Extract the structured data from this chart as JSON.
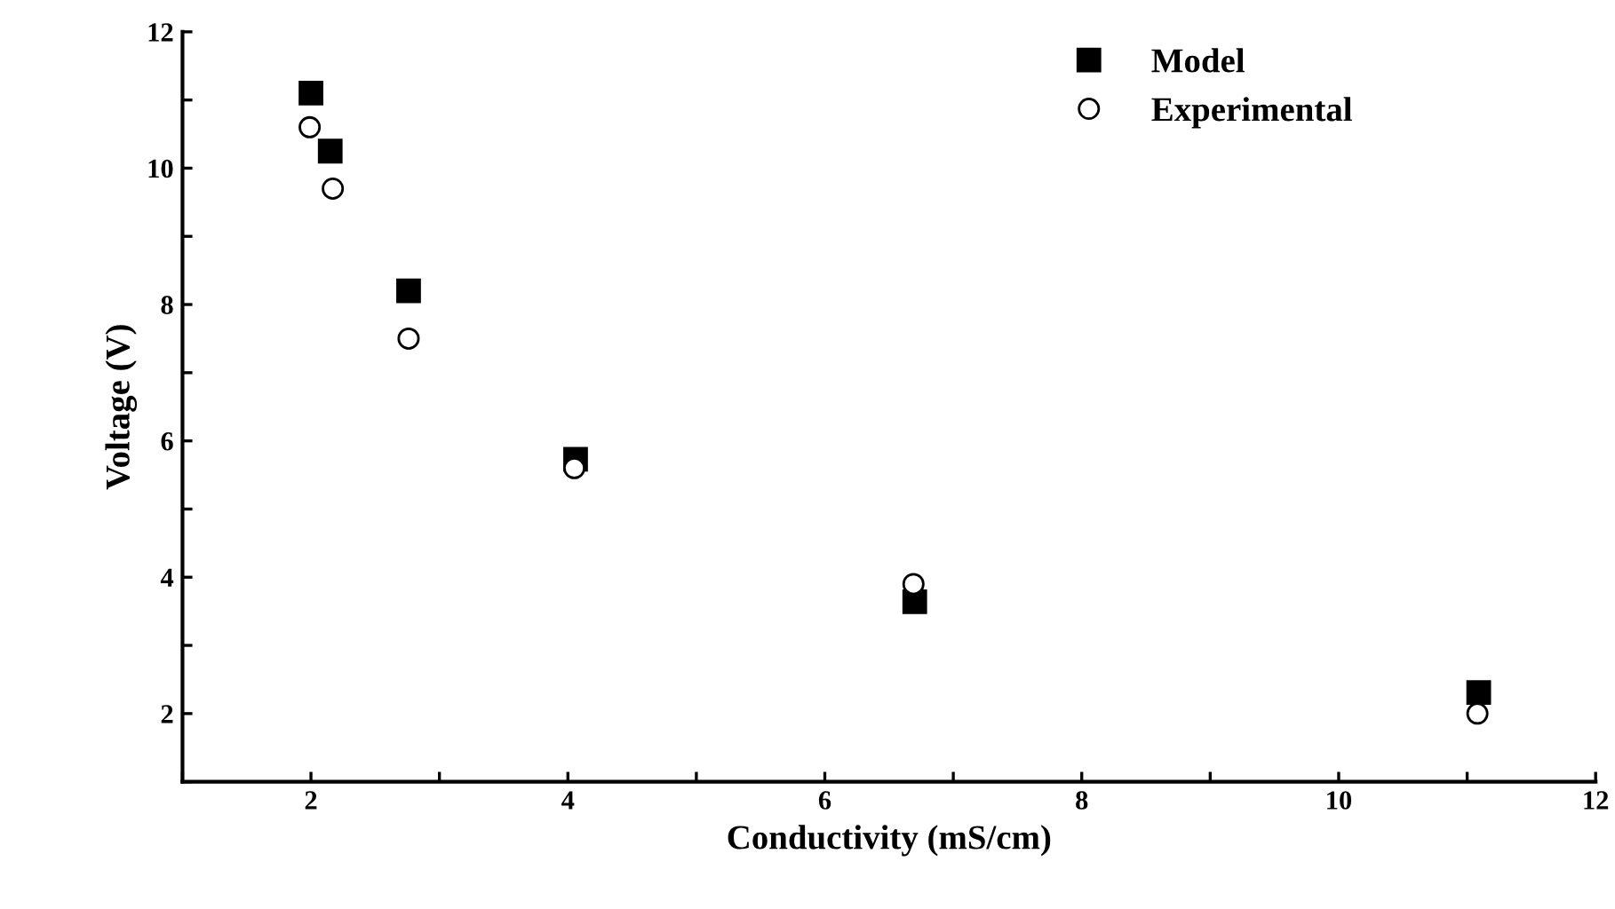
{
  "chart_data": {
    "type": "scatter",
    "xlabel": "Conductivity (mS/cm)",
    "ylabel": "Voltage (V)",
    "xlim": [
      1,
      12
    ],
    "ylim": [
      1,
      12
    ],
    "xticks": [
      {
        "value": 1,
        "label": null
      },
      2,
      {
        "value": 3,
        "label": null
      },
      4,
      {
        "value": 5,
        "label": null
      },
      6,
      {
        "value": 7,
        "label": null
      },
      8,
      {
        "value": 9,
        "label": null
      },
      10,
      {
        "value": 11,
        "label": null
      },
      12
    ],
    "yticks": [
      {
        "value": 1,
        "label": null
      },
      2,
      {
        "value": 3,
        "label": null
      },
      4,
      {
        "value": 5,
        "label": null
      },
      6,
      {
        "value": 7,
        "label": null
      },
      8,
      {
        "value": 9,
        "label": null
      },
      10,
      {
        "value": 11,
        "label": null
      },
      12
    ],
    "grid": false,
    "legend": "top right",
    "series": [
      {
        "name": "Model",
        "color": "#000000",
        "marker": "square",
        "x": [
          2.0,
          2.15,
          2.76,
          4.06,
          6.7,
          11.09
        ],
        "values": [
          11.1,
          10.25,
          8.2,
          5.73,
          3.64,
          2.31
        ]
      },
      {
        "name": "Experimental",
        "color": "#000000",
        "marker": "circle",
        "x": [
          1.99,
          2.17,
          2.76,
          4.05,
          6.69,
          11.08
        ],
        "values": [
          10.6,
          9.7,
          7.5,
          5.6,
          3.9,
          2.0
        ]
      }
    ]
  }
}
